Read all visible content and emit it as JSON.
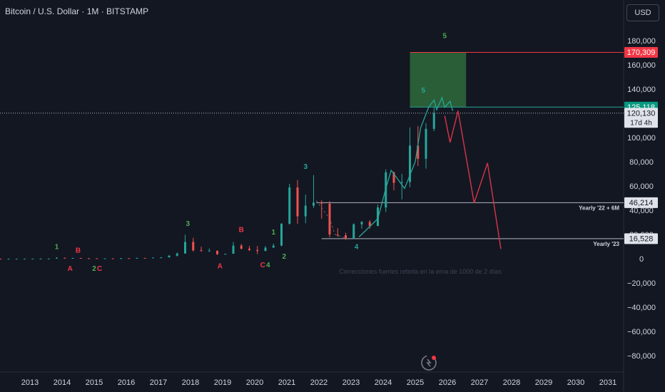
{
  "header": {
    "title": "Bitcoin / U.S. Dollar · 1M · BITSTAMP",
    "currency": "USD"
  },
  "chart_data": {
    "type": "candlestick",
    "ylim": [
      -92000,
      188000
    ],
    "y_ticks": [
      180000,
      160000,
      140000,
      120000,
      100000,
      80000,
      60000,
      40000,
      20000,
      0,
      -20000,
      -40000,
      -60000,
      -80000
    ],
    "y_tick_labels": [
      "180,000",
      "160,000",
      "140,000",
      "120,000",
      "100,000",
      "80,000",
      "60,000",
      "40,000",
      "20,000",
      "0",
      "−20,000",
      "−40,000",
      "−60,000",
      "−80,000"
    ],
    "x_ticks": [
      "2013",
      "2014",
      "2015",
      "2016",
      "2017",
      "2018",
      "2019",
      "2020",
      "2021",
      "2022",
      "2023",
      "2024",
      "2025",
      "2026",
      "2027",
      "2028",
      "2029",
      "2030",
      "2031"
    ],
    "colors": {
      "up": "#26a69a",
      "down": "#ef5350",
      "projection": "#d9344a",
      "wave_line": "#26a69a",
      "target_box": "#2f6b3a"
    },
    "candles": [
      {
        "d": "2012-01",
        "o": 6,
        "h": 7,
        "l": 4,
        "c": 5
      },
      {
        "d": "2012-04",
        "o": 5,
        "h": 6,
        "l": 4,
        "c": 5
      },
      {
        "d": "2012-07",
        "o": 5,
        "h": 15,
        "l": 5,
        "c": 12
      },
      {
        "d": "2012-10",
        "o": 12,
        "h": 14,
        "l": 10,
        "c": 13
      },
      {
        "d": "2013-01",
        "o": 13,
        "h": 50,
        "l": 13,
        "c": 94
      },
      {
        "d": "2013-04",
        "o": 94,
        "h": 266,
        "l": 50,
        "c": 100
      },
      {
        "d": "2013-07",
        "o": 100,
        "h": 140,
        "l": 65,
        "c": 120
      },
      {
        "d": "2013-10",
        "o": 120,
        "h": 1160,
        "l": 120,
        "c": 730
      },
      {
        "d": "2014-01",
        "o": 730,
        "h": 1000,
        "l": 400,
        "c": 450
      },
      {
        "d": "2014-04",
        "o": 450,
        "h": 680,
        "l": 340,
        "c": 620
      },
      {
        "d": "2014-07",
        "o": 620,
        "h": 650,
        "l": 370,
        "c": 390
      },
      {
        "d": "2014-10",
        "o": 390,
        "h": 450,
        "l": 300,
        "c": 320
      },
      {
        "d": "2015-01",
        "o": 320,
        "h": 320,
        "l": 160,
        "c": 244
      },
      {
        "d": "2015-04",
        "o": 244,
        "h": 300,
        "l": 210,
        "c": 263
      },
      {
        "d": "2015-07",
        "o": 263,
        "h": 320,
        "l": 200,
        "c": 236
      },
      {
        "d": "2015-10",
        "o": 236,
        "h": 500,
        "l": 230,
        "c": 430
      },
      {
        "d": "2016-01",
        "o": 430,
        "h": 460,
        "l": 360,
        "c": 416
      },
      {
        "d": "2016-04",
        "o": 416,
        "h": 780,
        "l": 410,
        "c": 673
      },
      {
        "d": "2016-07",
        "o": 673,
        "h": 680,
        "l": 500,
        "c": 608
      },
      {
        "d": "2016-10",
        "o": 608,
        "h": 980,
        "l": 600,
        "c": 963
      },
      {
        "d": "2017-01",
        "o": 963,
        "h": 1300,
        "l": 750,
        "c": 1079
      },
      {
        "d": "2017-04",
        "o": 1079,
        "h": 3000,
        "l": 1070,
        "c": 2480
      },
      {
        "d": "2017-07",
        "o": 2480,
        "h": 5000,
        "l": 1830,
        "c": 4340
      },
      {
        "d": "2017-10",
        "o": 4340,
        "h": 19700,
        "l": 4100,
        "c": 13860
      },
      {
        "d": "2018-01",
        "o": 13860,
        "h": 17200,
        "l": 5900,
        "c": 6930
      },
      {
        "d": "2018-04",
        "o": 6930,
        "h": 9900,
        "l": 5800,
        "c": 6390
      },
      {
        "d": "2018-07",
        "o": 6390,
        "h": 8500,
        "l": 5800,
        "c": 6620
      },
      {
        "d": "2018-10",
        "o": 6620,
        "h": 6700,
        "l": 3100,
        "c": 3740
      },
      {
        "d": "2019-01",
        "o": 3740,
        "h": 4100,
        "l": 3300,
        "c": 4100
      },
      {
        "d": "2019-04",
        "o": 4100,
        "h": 13800,
        "l": 4100,
        "c": 10800
      },
      {
        "d": "2019-07",
        "o": 10800,
        "h": 12300,
        "l": 7700,
        "c": 8300
      },
      {
        "d": "2019-10",
        "o": 8300,
        "h": 10500,
        "l": 6400,
        "c": 7200
      },
      {
        "d": "2020-01",
        "o": 7200,
        "h": 10500,
        "l": 3800,
        "c": 6400
      },
      {
        "d": "2020-04",
        "o": 6400,
        "h": 10400,
        "l": 6200,
        "c": 9150
      },
      {
        "d": "2020-07",
        "o": 9150,
        "h": 12500,
        "l": 9000,
        "c": 10800
      },
      {
        "d": "2020-10",
        "o": 10800,
        "h": 29300,
        "l": 10400,
        "c": 28900
      },
      {
        "d": "2021-01",
        "o": 28900,
        "h": 61800,
        "l": 28200,
        "c": 58800
      },
      {
        "d": "2021-04",
        "o": 58800,
        "h": 64900,
        "l": 28800,
        "c": 35000
      },
      {
        "d": "2021-07",
        "o": 35000,
        "h": 52900,
        "l": 29300,
        "c": 43800
      },
      {
        "d": "2021-10",
        "o": 43800,
        "h": 69000,
        "l": 42000,
        "c": 46300
      },
      {
        "d": "2022-01",
        "o": 46300,
        "h": 48200,
        "l": 33000,
        "c": 45500
      },
      {
        "d": "2022-04",
        "o": 45500,
        "h": 47500,
        "l": 17600,
        "c": 19900
      },
      {
        "d": "2022-07",
        "o": 19900,
        "h": 25200,
        "l": 18200,
        "c": 19400
      },
      {
        "d": "2022-10",
        "o": 19400,
        "h": 21500,
        "l": 15500,
        "c": 16500
      },
      {
        "d": "2023-01",
        "o": 16500,
        "h": 29200,
        "l": 16500,
        "c": 28400
      },
      {
        "d": "2023-04",
        "o": 28400,
        "h": 31000,
        "l": 24800,
        "c": 30400
      },
      {
        "d": "2023-07",
        "o": 30400,
        "h": 31800,
        "l": 24900,
        "c": 27000
      },
      {
        "d": "2023-10",
        "o": 27000,
        "h": 44800,
        "l": 26900,
        "c": 42300
      },
      {
        "d": "2024-01",
        "o": 42300,
        "h": 73800,
        "l": 38500,
        "c": 71300
      },
      {
        "d": "2024-04",
        "o": 71300,
        "h": 72000,
        "l": 56500,
        "c": 62700
      },
      {
        "d": "2024-07",
        "o": 62700,
        "h": 70000,
        "l": 49000,
        "c": 63300
      },
      {
        "d": "2024-10",
        "o": 63300,
        "h": 108300,
        "l": 58900,
        "c": 93400
      },
      {
        "d": "2025-01",
        "o": 93400,
        "h": 109500,
        "l": 76500,
        "c": 82500
      },
      {
        "d": "2025-04",
        "o": 82500,
        "h": 111900,
        "l": 74400,
        "c": 107200
      },
      {
        "d": "2025-07",
        "o": 107200,
        "h": 125100,
        "l": 105300,
        "c": 120130
      }
    ],
    "wave_line": [
      {
        "d": "2023-03",
        "v": 18000
      },
      {
        "d": "2023-10",
        "v": 33000
      },
      {
        "d": "2024-01",
        "v": 58000
      },
      {
        "d": "2024-03",
        "v": 73000
      },
      {
        "d": "2024-08",
        "v": 58000
      },
      {
        "d": "2024-12",
        "v": 80000
      },
      {
        "d": "2025-02",
        "v": 108000
      },
      {
        "d": "2025-05",
        "v": 125000
      },
      {
        "d": "2025-07",
        "v": 131000
      },
      {
        "d": "2025-08",
        "v": 123000
      },
      {
        "d": "2025-10",
        "v": 133000
      },
      {
        "d": "2025-11",
        "v": 125000
      },
      {
        "d": "2026-01",
        "v": 130000
      },
      {
        "d": "2026-02",
        "v": 122000
      }
    ],
    "projection_line": [
      {
        "d": "2025-11",
        "v": 118000
      },
      {
        "d": "2026-01",
        "v": 96000
      },
      {
        "d": "2026-04",
        "v": 122000
      },
      {
        "d": "2026-10",
        "v": 46000
      },
      {
        "d": "2027-03",
        "v": 79000
      },
      {
        "d": "2027-08",
        "v": 8000
      }
    ],
    "dashed_line": [
      {
        "d": "2021-11",
        "v": 48000
      },
      {
        "d": "2022-04",
        "v": 33000
      },
      {
        "d": "2022-06",
        "v": 20000
      },
      {
        "d": "2022-11",
        "v": 16000
      }
    ],
    "target_box": {
      "start": "2024-10",
      "end": "2026-07",
      "top": 170309,
      "bottom": 125118
    },
    "horizontal_lines": [
      {
        "d_start": "2021-11",
        "v": 46214,
        "label": "Yearly '22 + 6M",
        "color": "#b2b5be"
      },
      {
        "d_start": "2022-01",
        "v": 16528,
        "label": "Yearly '23",
        "color": "#b2b5be"
      }
    ],
    "price_tags": [
      {
        "text": "170,309",
        "v": 170309,
        "bg": "#f23645"
      },
      {
        "text": "125,118",
        "v": 125118,
        "bg": "#089981"
      },
      {
        "text": "120,130",
        "v": 120130,
        "bg": "#e0e3eb",
        "fg": "#131722",
        "sub": "17d 4h"
      },
      {
        "text": "46,214",
        "v": 46214,
        "bg": "#e0e3eb",
        "fg": "#131722"
      },
      {
        "text": "16,528",
        "v": 16528,
        "bg": "#e0e3eb",
        "fg": "#131722"
      }
    ],
    "current_price": 120130,
    "wave_labels": [
      {
        "text": "1",
        "d": "2013-10",
        "v": 8000,
        "color": "#4caf50"
      },
      {
        "text": "B",
        "d": "2014-06",
        "v": 5000,
        "color": "#f23645"
      },
      {
        "text": "A",
        "d": "2014-03",
        "v": -10000,
        "color": "#f23645"
      },
      {
        "text": "2",
        "d": "2015-00",
        "v": -10000,
        "color": "#4caf50"
      },
      {
        "text": "C",
        "d": "2015-02",
        "v": -10000,
        "color": "#f23645"
      },
      {
        "text": "3",
        "d": "2017-11",
        "v": 27000,
        "color": "#4caf50"
      },
      {
        "text": "B",
        "d": "2019-07",
        "v": 22000,
        "color": "#f23645"
      },
      {
        "text": "1",
        "d": "2020-07",
        "v": 20000,
        "color": "#4caf50"
      },
      {
        "text": "A",
        "d": "2018-11",
        "v": -8000,
        "color": "#f23645"
      },
      {
        "text": "C",
        "d": "2020-03",
        "v": -7000,
        "color": "#f23645"
      },
      {
        "text": "4",
        "d": "2020-05",
        "v": -7000,
        "color": "#4caf50"
      },
      {
        "text": "2",
        "d": "2020-11",
        "v": 0,
        "color": "#4caf50"
      },
      {
        "text": "3",
        "d": "2021-07",
        "v": 74000,
        "color": "#26a69a"
      },
      {
        "text": "4",
        "d": "2023-02",
        "v": 8000,
        "color": "#26a69a"
      },
      {
        "text": "5",
        "d": "2025-03",
        "v": 137000,
        "color": "#26a69a"
      },
      {
        "text": "5",
        "d": "2025-11",
        "v": 182000,
        "color": "#4caf50"
      }
    ],
    "annotation": "Correcciones fuertes rebota en la ema de 1000 de 2 días"
  }
}
